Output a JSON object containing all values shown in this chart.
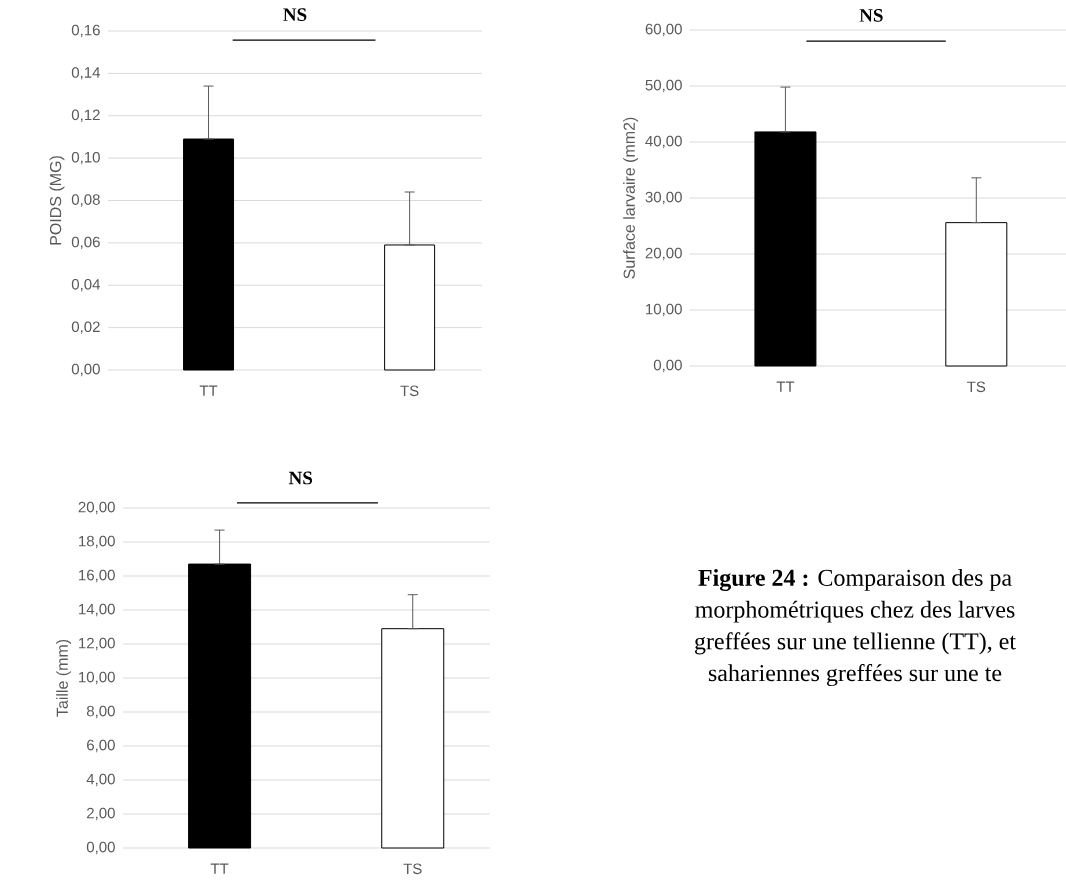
{
  "chart_data": [
    {
      "type": "bar",
      "ylabel": "POIDS (MG)",
      "categories": [
        "TT",
        "TS"
      ],
      "values": [
        0.109,
        0.059
      ],
      "colors": [
        "#000000",
        "#ffffff"
      ],
      "errors": [
        [
          0.109,
          0.134
        ],
        [
          0.059,
          0.084
        ]
      ],
      "ylim": [
        0,
        0.16
      ],
      "yticks": [
        {
          "value": 0,
          "label": "0,00"
        },
        {
          "value": 0.02,
          "label": "0,02"
        },
        {
          "value": 0.04,
          "label": "0,04"
        },
        {
          "value": 0.06,
          "label": "0,06"
        },
        {
          "value": 0.08,
          "label": "0,08"
        },
        {
          "value": 0.1,
          "label": "0,10"
        },
        {
          "value": 0.12,
          "label": "0,12"
        },
        {
          "value": 0.14,
          "label": "0,14"
        },
        {
          "value": 0.16,
          "label": "0,16"
        }
      ],
      "grid": "y",
      "annotations": [
        "NS"
      ]
    },
    {
      "type": "bar",
      "ylabel": "Surface larvaire (mm2)",
      "categories": [
        "TT",
        "TS"
      ],
      "values": [
        41.8,
        25.6
      ],
      "colors": [
        "#000000",
        "#ffffff"
      ],
      "errors": [
        [
          41.8,
          49.8
        ],
        [
          25.6,
          33.6
        ]
      ],
      "ylim": [
        0,
        60
      ],
      "yticks": [
        {
          "value": 0,
          "label": "0,00"
        },
        {
          "value": 10,
          "label": "10,00"
        },
        {
          "value": 20,
          "label": "20,00"
        },
        {
          "value": 30,
          "label": "30,00"
        },
        {
          "value": 40,
          "label": "40,00"
        },
        {
          "value": 50,
          "label": "50,00"
        },
        {
          "value": 60,
          "label": "60,00"
        }
      ],
      "grid": "y",
      "annotations": [
        "NS"
      ]
    },
    {
      "type": "bar",
      "ylabel": "Taille (mm)",
      "categories": [
        "TT",
        "TS"
      ],
      "values": [
        16.7,
        12.9
      ],
      "colors": [
        "#000000",
        "#ffffff"
      ],
      "errors": [
        [
          16.7,
          18.7
        ],
        [
          12.9,
          14.9
        ]
      ],
      "ylim": [
        0,
        20
      ],
      "yticks": [
        {
          "value": 0,
          "label": "0,00"
        },
        {
          "value": 2,
          "label": "2,00"
        },
        {
          "value": 4,
          "label": "4,00"
        },
        {
          "value": 6,
          "label": "6,00"
        },
        {
          "value": 8,
          "label": "8,00"
        },
        {
          "value": 10,
          "label": "10,00"
        },
        {
          "value": 12,
          "label": "12,00"
        },
        {
          "value": 14,
          "label": "14,00"
        },
        {
          "value": 16,
          "label": "16,00"
        },
        {
          "value": 18,
          "label": "18,00"
        },
        {
          "value": 20,
          "label": "20,00"
        }
      ],
      "grid": "y",
      "annotations": [
        "NS"
      ]
    },
    {
      "type": "other",
      "annotations": [
        "**Figure 24 :** Comparaison des pa",
        "morphométriques chez des larves",
        "greffées sur une tellienne (TT), et",
        "sahariennes greffées sur une te"
      ]
    }
  ]
}
